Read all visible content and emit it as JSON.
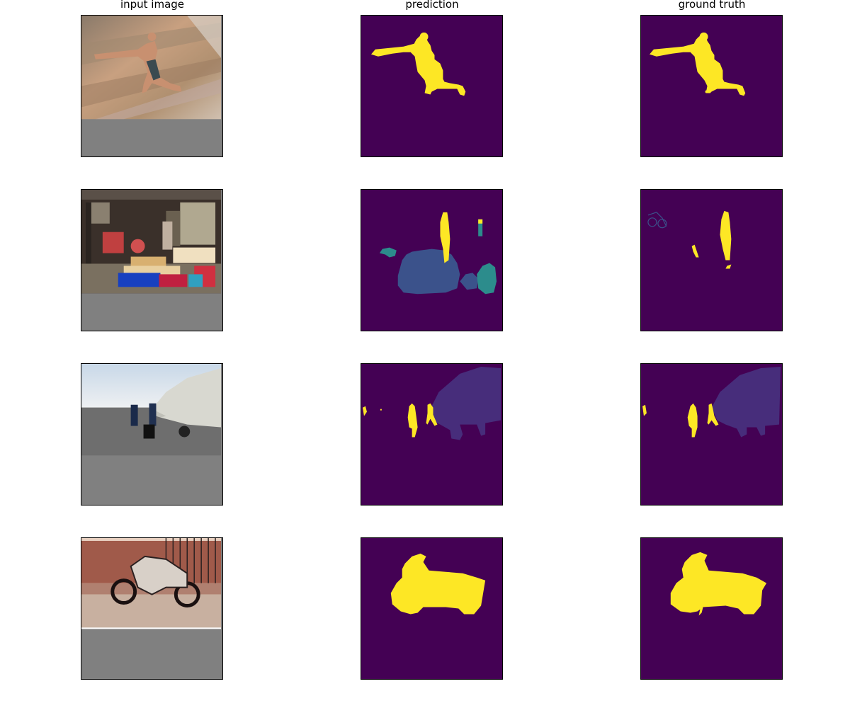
{
  "titles": {
    "col1": "input image",
    "col2": "prediction",
    "col3": "ground truth"
  },
  "colors": {
    "background_class": "#440154",
    "person": "#fde725",
    "chair": "#2c8c8c",
    "table": "#3b528b",
    "aeroplane": "#472d7b",
    "motorbike": "#fde725",
    "padding_gray": "#808080"
  },
  "rows": [
    {
      "content": "rock climber on rock face",
      "icon": "climber-photo"
    },
    {
      "content": "garage with toys and people",
      "icon": "garage-photo"
    },
    {
      "content": "people beside parked aircraft",
      "icon": "aircraft-photo"
    },
    {
      "content": "motorcycle in front of fence",
      "icon": "motorcycle-photo"
    }
  ]
}
